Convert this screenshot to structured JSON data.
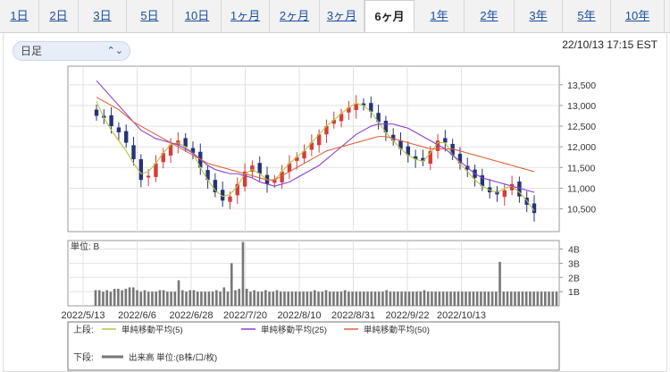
{
  "tabs": [
    {
      "label": "1日",
      "active": false
    },
    {
      "label": "2日",
      "active": false
    },
    {
      "label": "3日",
      "active": false
    },
    {
      "label": "5日",
      "active": false
    },
    {
      "label": "10日",
      "active": false
    },
    {
      "label": "1ヶ月",
      "active": false
    },
    {
      "label": "2ヶ月",
      "active": false
    },
    {
      "label": "3ヶ月",
      "active": false
    },
    {
      "label": "6ヶ月",
      "active": true
    },
    {
      "label": "1年",
      "active": false
    },
    {
      "label": "2年",
      "active": false
    },
    {
      "label": "3年",
      "active": false
    },
    {
      "label": "5年",
      "active": false
    },
    {
      "label": "10年",
      "active": false
    }
  ],
  "period_select": {
    "value": "日足"
  },
  "timestamp": "22/10/13 17:15 EST",
  "colors": {
    "up": "#d63b3b",
    "down": "#25337a",
    "ma5": "#b7c43c",
    "ma25": "#8a3fd0",
    "ma50": "#e0623a",
    "volume": "#777777"
  },
  "chart_data": [
    {
      "type": "candlestick",
      "yticks": [
        "13,500",
        "13,000",
        "12,500",
        "12,000",
        "11,500",
        "11,000",
        "10,500"
      ],
      "ylim": [
        9950,
        13950
      ],
      "x": [
        "2022/5/13",
        "2022/6/6",
        "2022/6/28",
        "2022/7/20",
        "2022/8/10",
        "2022/8/31",
        "2022/9/22",
        "2022/10/13"
      ],
      "close_approx": [
        12750,
        12700,
        12500,
        12350,
        12100,
        11700,
        11200,
        11300,
        11600,
        11850,
        12050,
        12150,
        12000,
        11850,
        11500,
        11200,
        10900,
        10700,
        10800,
        11100,
        11400,
        11550,
        11350,
        11100,
        11200,
        11400,
        11600,
        11750,
        11900,
        12100,
        12300,
        12500,
        12650,
        12800,
        12950,
        13050,
        13000,
        12850,
        12600,
        12350,
        12150,
        11950,
        11800,
        11700,
        11650,
        11900,
        12150,
        12100,
        11800,
        11600,
        11450,
        11250,
        11050,
        10900,
        10850,
        10950,
        11100,
        10800,
        10600,
        10400
      ],
      "ma_lines": [
        {
          "name": "単純移動平均(5)",
          "values": [
            13100,
            12700,
            12400,
            12150,
            11900,
            11600,
            11350,
            11400,
            11600,
            11850,
            12050,
            12100,
            12000,
            11850,
            11500,
            11200,
            10950,
            10800,
            10850,
            11050,
            11350,
            11450,
            11350,
            11200,
            11200,
            11400,
            11600,
            11750,
            11900,
            12100,
            12300,
            12500,
            12650,
            12800,
            12950,
            13050,
            13000,
            12850,
            12600,
            12350,
            12150,
            11950,
            11800,
            11700,
            11650,
            11850,
            12100,
            12100,
            11800,
            11600,
            11400,
            11200,
            11050,
            10950,
            10900,
            11000,
            11050,
            10900,
            10700,
            10450
          ]
        },
        {
          "name": "単純移動平均(25)",
          "values": [
            13600,
            13400,
            13200,
            13000,
            12800,
            12600,
            12400,
            12300,
            12200,
            12150,
            12100,
            12050,
            11950,
            11850,
            11700,
            11550,
            11450,
            11400,
            11350,
            11350,
            11300,
            11250,
            11150,
            11100,
            11050,
            11100,
            11150,
            11250,
            11350,
            11450,
            11550,
            11700,
            11850,
            12000,
            12150,
            12300,
            12400,
            12500,
            12550,
            12550,
            12550,
            12500,
            12450,
            12350,
            12250,
            12150,
            12050,
            11950,
            11800,
            11650,
            11500,
            11350,
            11250,
            11200,
            11150,
            11100,
            11050,
            11000,
            10950,
            10900
          ]
        },
        {
          "name": "単純移動平均(50)",
          "values": [
            13200,
            13100,
            13000,
            12900,
            12750,
            12600,
            12500,
            12400,
            12300,
            12200,
            12100,
            12000,
            11900,
            11800,
            11700,
            11600,
            11550,
            11500,
            11450,
            11400,
            11350,
            11300,
            11250,
            11200,
            11200,
            11300,
            11400,
            11500,
            11600,
            11700,
            11800,
            11900,
            11950,
            12000,
            12050,
            12100,
            12150,
            12200,
            12250,
            12250,
            12200,
            12150,
            12100,
            12050,
            12000,
            11950,
            11950,
            11950,
            11950,
            11900,
            11850,
            11800,
            11750,
            11700,
            11650,
            11600,
            11550,
            11500,
            11450,
            11400
          ]
        }
      ]
    },
    {
      "type": "bar",
      "title": "単位: B",
      "yticks": [
        "4B",
        "3B",
        "2B",
        "1B"
      ],
      "ylim": [
        0,
        4.6
      ],
      "values": [
        1.1,
        1.1,
        1.0,
        1.1,
        1.0,
        1.2,
        1.2,
        1.1,
        1.2,
        1.3,
        1.3,
        1.1,
        1.0,
        1.1,
        1.0,
        1.0,
        1.0,
        1.1,
        1.1,
        1.0,
        1.0,
        1.0,
        1.8,
        1.1,
        1.0,
        1.1,
        1.1,
        1.0,
        1.0,
        1.0,
        1.0,
        1.0,
        1.1,
        1.0,
        1.3,
        1.0,
        3.0,
        1.1,
        1.2,
        4.5,
        1.2,
        1.0,
        1.1,
        1.0,
        1.0,
        1.1,
        1.0,
        1.0,
        1.1,
        1.0,
        1.0,
        1.0,
        1.0,
        1.0,
        1.0,
        1.0,
        1.0,
        1.0,
        1.1,
        1.0,
        1.0,
        1.1,
        1.0,
        1.0,
        1.0,
        1.0,
        1.1,
        1.0,
        1.0,
        1.0,
        1.0,
        1.0,
        1.0,
        1.0,
        1.0,
        1.0,
        1.0,
        1.1,
        1.0,
        1.0,
        1.0,
        1.0,
        1.0,
        1.0,
        1.0,
        1.0,
        1.0,
        1.1,
        1.0,
        1.0,
        1.0,
        1.0,
        1.0,
        1.0,
        1.0,
        1.0,
        1.0,
        1.0,
        1.0,
        1.0,
        1.0,
        1.0,
        1.0,
        1.0,
        1.0,
        1.0,
        1.0,
        3.1,
        1.0,
        1.0,
        1.0,
        1.0,
        1.0,
        1.0,
        1.0,
        1.0,
        1.0,
        1.0,
        1.0,
        1.0,
        1.0,
        1.0,
        1.0
      ]
    }
  ],
  "legend": {
    "upper_label": "上段:",
    "lower_label": "下段:",
    "items": [
      {
        "name": "単純移動平均(5)",
        "color": "#b7c43c"
      },
      {
        "name": "単純移動平均(25)",
        "color": "#8a3fd0"
      },
      {
        "name": "単純移動平均(50)",
        "color": "#e0623a"
      }
    ],
    "volume": {
      "name": "出来高 単位:(B株/口/枚)",
      "color": "#777777"
    }
  }
}
